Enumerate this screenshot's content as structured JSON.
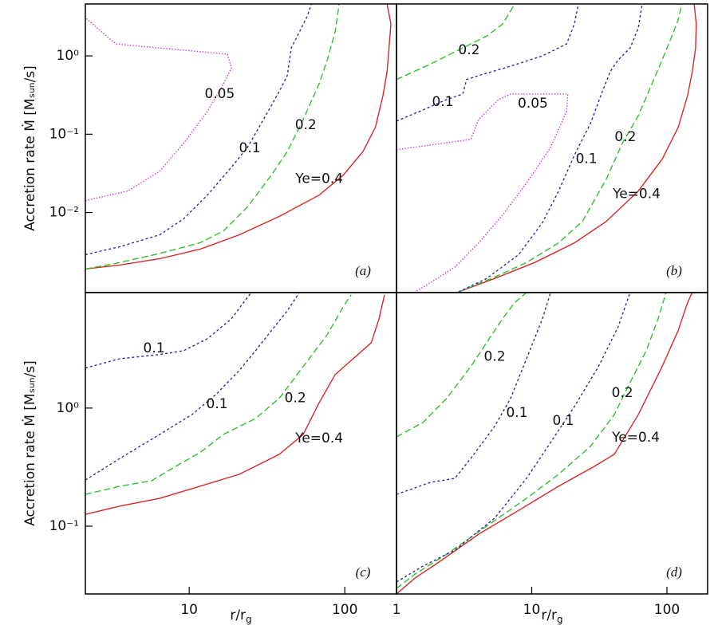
{
  "chart_data": [
    {
      "type": "line",
      "panel": "(a)",
      "xscale": "log",
      "yscale": "log",
      "xlim": [
        2.15,
        215
      ],
      "ylim": [
        0.00095,
        4.6
      ],
      "yticks": [
        {
          "value": 1,
          "label": "10⁰"
        },
        {
          "value": 0.1,
          "label": "10⁻¹"
        },
        {
          "value": 0.01,
          "label": "10⁻²"
        }
      ],
      "ylabel": "Accretion rate Ṁ [Mₛᵤₙ/s]",
      "series": [
        {
          "color": "#d42a2a",
          "dash": "solid",
          "x": [
            2.15,
            3.58,
            6.46,
            11.7,
            21,
            37.9,
            68.5,
            97.7,
            131,
            157,
            176,
            187,
            198,
            187
          ],
          "values": [
            0.0019,
            0.00214,
            0.00257,
            0.0034,
            0.0052,
            0.0089,
            0.0167,
            0.03,
            0.06,
            0.122,
            0.31,
            0.63,
            2.55,
            4.57
          ]
        },
        {
          "color": "#2fc02f",
          "dash": "dashed",
          "x": [
            2.15,
            3.58,
            6.46,
            11.7,
            16.6,
            23.7,
            33.7,
            42.7,
            54.1,
            68.5,
            77.1,
            86.7,
            92.0
          ],
          "values": [
            0.0019,
            0.0023,
            0.003,
            0.0041,
            0.0058,
            0.0118,
            0.03,
            0.06,
            0.154,
            0.44,
            0.89,
            2.02,
            4.57
          ]
        },
        {
          "color": "#2a2aa8",
          "dash": "dotted",
          "x": [
            2.15,
            3.58,
            6.46,
            9.2,
            13.1,
            18.7,
            23.7,
            30,
            37.9,
            42.7,
            45.3,
            51.1,
            57.4,
            61.0
          ],
          "values": [
            0.0029,
            0.00366,
            0.0052,
            0.0083,
            0.0167,
            0.038,
            0.068,
            0.154,
            0.35,
            0.56,
            1.26,
            2.02,
            3.22,
            4.57
          ]
        },
        {
          "color": "#d040d0",
          "dash": "dots",
          "x": [
            2.15,
            4.03,
            6.46,
            9.2,
            13.1,
            16.6,
            18.7,
            17.6,
            3.38,
            2.15
          ],
          "values": [
            0.0142,
            0.0188,
            0.0337,
            0.0764,
            0.195,
            0.44,
            0.7,
            1.05,
            1.42,
            3.07
          ]
        }
      ],
      "annotations": [
        {
          "text": "0.05",
          "x": 15.7,
          "y": 0.326
        },
        {
          "text": "0.1",
          "x": 24.5,
          "y": 0.066
        },
        {
          "text": "0.2",
          "x": 56.1,
          "y": 0.131
        },
        {
          "text": "Ye=0.4",
          "x": 68.5,
          "y": 0.0267
        }
      ]
    },
    {
      "type": "line",
      "panel": "(b)",
      "xscale": "log",
      "yscale": "log",
      "xlim": [
        1,
        200
      ],
      "ylim": [
        0.00095,
        4.6
      ],
      "series": [
        {
          "color": "#d42a2a",
          "dash": "solid",
          "x": [
            2.88,
            5.32,
            10.5,
            20.7,
            35.6,
            61.4,
            92.2,
            121,
            142,
            154,
            163,
            165,
            159
          ],
          "values": [
            0.00097,
            0.00144,
            0.0023,
            0.0041,
            0.0077,
            0.0188,
            0.048,
            0.122,
            0.31,
            0.63,
            1.26,
            2.55,
            4.57
          ]
        },
        {
          "color": "#2fc02f",
          "dash": "dashed",
          "x": [
            2.88,
            5.32,
            9.16,
            15.8,
            23.7,
            35.6,
            46.8,
            61.4,
            75.2,
            92.2,
            106,
            121,
            129
          ],
          "values": [
            0.00097,
            0.0015,
            0.0023,
            0.0041,
            0.0077,
            0.0267,
            0.0764,
            0.173,
            0.39,
            0.89,
            1.6,
            2.86,
            4.57
          ]
        },
        {
          "color": "#2fc02f",
          "dash": "dashed",
          "x": [
            1,
            1.79,
            3.09,
            4.64,
            6.09,
            7.47
          ],
          "values": [
            0.5,
            0.79,
            1.26,
            1.79,
            2.55,
            4.57
          ]
        },
        {
          "color": "#2a2aa8",
          "dash": "dotted",
          "x": [
            2.88,
            4.64,
            8.0,
            12.0,
            15.8,
            20.7,
            27.2,
            33.3,
            38.1,
            43.6,
            53.5,
            61.4,
            65.6
          ],
          "values": [
            0.00097,
            0.00144,
            0.0029,
            0.0074,
            0.0188,
            0.054,
            0.137,
            0.35,
            0.63,
            0.89,
            1.26,
            2.27,
            4.57
          ]
        },
        {
          "color": "#2a2aa8",
          "dash": "dotted",
          "x": [
            1,
            1.57,
            2.35,
            3.09,
            3.3,
            4.05,
            6.98,
            12.0,
            18.1,
            20.7,
            22.1
          ],
          "values": [
            0.147,
            0.204,
            0.277,
            0.326,
            0.5,
            0.56,
            0.74,
            1.0,
            1.42,
            2.55,
            4.57
          ]
        },
        {
          "color": "#d040d0",
          "dash": "dots",
          "x": [
            1,
            1.79,
            3.54,
            4.05,
            5.69,
            6.98,
            18.5,
            18.1,
            13.8,
            9.16,
            6.09,
            4.05,
            2.7,
            1.79,
            1.37
          ],
          "values": [
            0.0634,
            0.0729,
            0.0859,
            0.154,
            0.277,
            0.326,
            0.326,
            0.195,
            0.068,
            0.0238,
            0.0093,
            0.0041,
            0.002,
            0.00128,
            0.00097
          ]
        }
      ],
      "annotations": [
        {
          "text": "0.2",
          "x": 3.44,
          "y": 1.18
        },
        {
          "text": "0.1",
          "x": 2.2,
          "y": 0.258
        },
        {
          "text": "0.05",
          "x": 10.2,
          "y": 0.246
        },
        {
          "text": "0.1",
          "x": 25.4,
          "y": 0.048
        },
        {
          "text": "0.2",
          "x": 49.3,
          "y": 0.092
        },
        {
          "text": "Ye=0.4",
          "x": 59.7,
          "y": 0.0171
        }
      ]
    },
    {
      "type": "line",
      "panel": "(c)",
      "xscale": "log",
      "yscale": "log",
      "xlim": [
        2.15,
        215
      ],
      "ylim": [
        0.0267,
        9.5
      ],
      "xticks": [
        10,
        100
      ],
      "yticks": [
        {
          "value": 1,
          "label": "10⁰"
        },
        {
          "value": 0.1,
          "label": "10⁻¹"
        }
      ],
      "ylabel": "Accretion rate Ṁ [Mₛᵤₙ/s]",
      "xlabel": "r/r",
      "xlabel_sub": "g",
      "series": [
        {
          "color": "#d42a2a",
          "dash": "solid",
          "x": [
            2.15,
            3.58,
            6.46,
            11.7,
            21,
            37.9,
            54.1,
            68.5,
            86.7,
            148,
            166,
            180
          ],
          "values": [
            0.126,
            0.148,
            0.172,
            0.218,
            0.275,
            0.406,
            0.598,
            1.11,
            1.92,
            3.58,
            5.71,
            9.1
          ]
        },
        {
          "color": "#2fc02f",
          "dash": "dashed",
          "x": [
            2.15,
            3.58,
            5.74,
            8.18,
            11.7,
            16.6,
            26.7,
            37.9,
            54.1,
            77.1,
            97.7,
            110
          ],
          "values": [
            0.186,
            0.218,
            0.243,
            0.321,
            0.419,
            0.598,
            0.817,
            1.21,
            2.25,
            4.18,
            7.21,
            9.1
          ]
        },
        {
          "color": "#2a2aa8",
          "dash": "dotted",
          "x": [
            2.15,
            3.58,
            6.46,
            10.4,
            14.8,
            21,
            26.7,
            33.7,
            42.7,
            51.1
          ],
          "values": [
            0.246,
            0.375,
            0.598,
            0.88,
            1.3,
            2.08,
            3.06,
            4.52,
            6.67,
            9.55
          ]
        },
        {
          "color": "#2a2aa8",
          "dash": "dotted",
          "x": [
            2.15,
            3.58,
            6.46,
            9.2,
            13.1,
            18.7,
            22.3,
            25.1
          ],
          "values": [
            2.18,
            2.62,
            2.84,
            3.06,
            3.87,
            5.71,
            7.8,
            9.55
          ]
        }
      ],
      "annotations": [
        {
          "text": "0.1",
          "x": 5.94,
          "y": 3.21
        },
        {
          "text": "0.1",
          "x": 15.1,
          "y": 1.08
        },
        {
          "text": "0.2",
          "x": 48.1,
          "y": 1.21
        },
        {
          "text": "Ye=0.4",
          "x": 68.5,
          "y": 0.553
        }
      ]
    },
    {
      "type": "line",
      "panel": "(d)",
      "xscale": "log",
      "yscale": "log",
      "xlim": [
        1,
        200
      ],
      "ylim": [
        0.0267,
        9.5
      ],
      "xticks": [
        1,
        10,
        100
      ],
      "xlabel": "r/r",
      "xlabel_sub": "g",
      "series": [
        {
          "color": "#d42a2a",
          "dash": "solid",
          "x": [
            1,
            1.37,
            2.06,
            4.05,
            8.0,
            15.8,
            29.0,
            40.8,
            61.4,
            92.2,
            121,
            142,
            154
          ],
          "values": [
            0.0267,
            0.0364,
            0.0497,
            0.0856,
            0.136,
            0.218,
            0.321,
            0.406,
            0.88,
            2.25,
            4.52,
            7.8,
            9.55
          ]
        },
        {
          "color": "#2fc02f",
          "dash": "dashed",
          "x": [
            1,
            1.37,
            2.35,
            4.64,
            9.16,
            15.8,
            27.2,
            40.8,
            53.5,
            70.3,
            86.1,
            98.6
          ],
          "values": [
            0.0297,
            0.0393,
            0.058,
            0.1,
            0.172,
            0.275,
            0.474,
            0.88,
            1.65,
            3.06,
            5.71,
            9.55
          ]
        },
        {
          "color": "#2fc02f",
          "dash": "dashed",
          "x": [
            1,
            1.57,
            2.35,
            3.54,
            4.64,
            6.09,
            7.47,
            9.16
          ],
          "values": [
            0.571,
            0.756,
            1.21,
            2.25,
            3.58,
            5.71,
            7.8,
            9.55
          ]
        },
        {
          "color": "#2a2aa8",
          "dash": "dotted",
          "x": [
            1,
            1.57,
            2.7,
            5.32,
            9.16,
            13.8,
            20.7,
            31.2,
            43.6,
            53.5
          ],
          "values": [
            0.0337,
            0.046,
            0.0627,
            0.117,
            0.254,
            0.512,
            1.03,
            2.25,
            4.89,
            9.55
          ]
        },
        {
          "color": "#2a2aa8",
          "dash": "dotted",
          "x": [
            1,
            1.79,
            2.7,
            3.54,
            5.32,
            6.98,
            9.16,
            12.0,
            13.8
          ],
          "values": [
            0.186,
            0.235,
            0.254,
            0.375,
            0.7,
            1.21,
            2.62,
            5.71,
            9.55
          ]
        }
      ],
      "annotations": [
        {
          "text": "0.2",
          "x": 5.32,
          "y": 2.71
        },
        {
          "text": "0.1",
          "x": 7.78,
          "y": 0.91
        },
        {
          "text": "0.1",
          "x": 17.1,
          "y": 0.78
        },
        {
          "text": "0.2",
          "x": 46.8,
          "y": 1.34
        },
        {
          "text": "Ye=0.4",
          "x": 58.9,
          "y": 0.562
        }
      ]
    }
  ]
}
